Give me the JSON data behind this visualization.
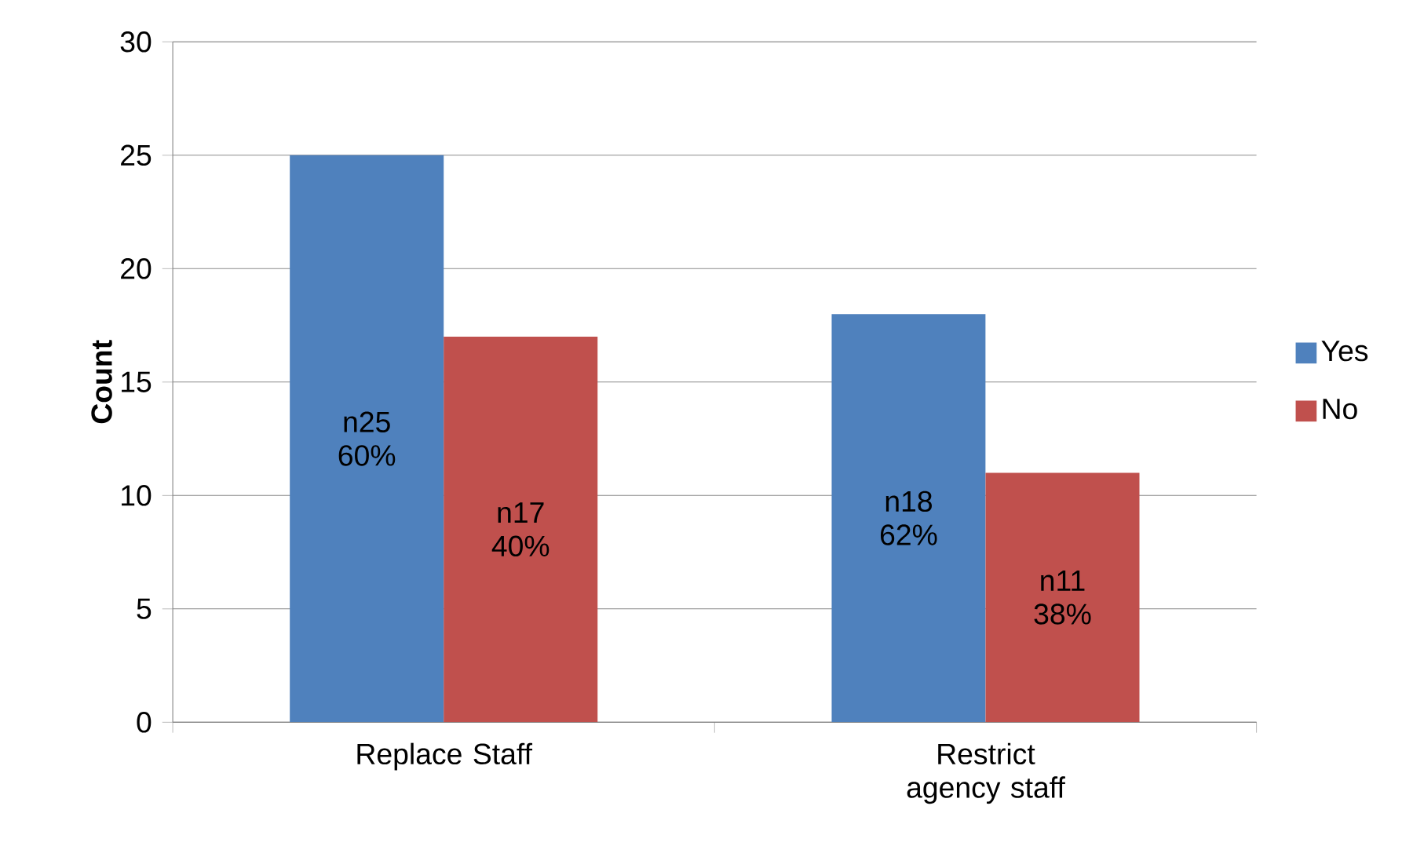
{
  "chart_data": {
    "type": "bar",
    "ylabel": "Count",
    "categories": [
      "Replace Staff",
      "Restrict agency staff"
    ],
    "series": [
      {
        "name": "Yes",
        "color": "#4f81bd",
        "values": [
          25,
          18
        ],
        "value_labels": [
          "n25 60%",
          "n18 62%"
        ]
      },
      {
        "name": "No",
        "color": "#c0504d",
        "values": [
          17,
          11
        ],
        "value_labels": [
          "n17 40%",
          "n11 38%"
        ]
      }
    ],
    "ylim": [
      0,
      30
    ],
    "yticks": [
      0,
      5,
      10,
      15,
      20,
      25,
      30
    ],
    "grid": "y",
    "legend": "right"
  }
}
